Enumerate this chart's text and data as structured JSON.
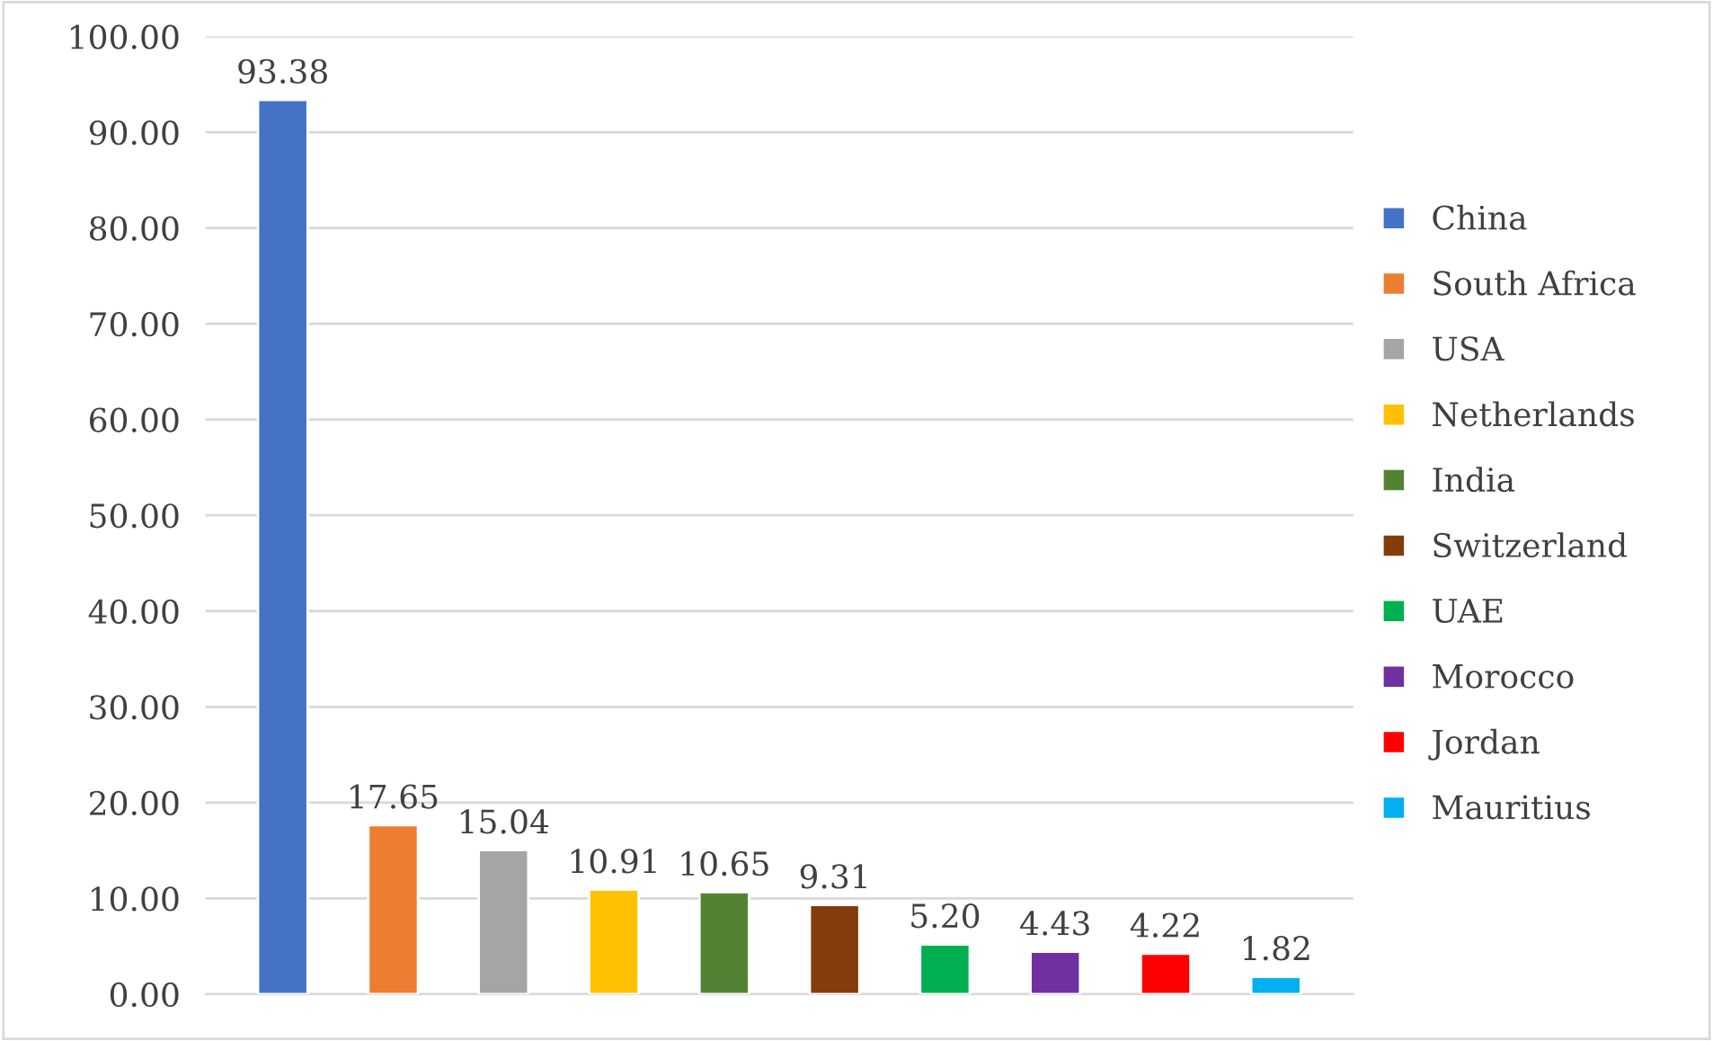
{
  "chart_data": {
    "type": "bar",
    "categories": [
      null,
      null,
      null,
      null,
      null,
      null,
      null,
      null,
      null,
      null
    ],
    "series": [
      {
        "name": "China",
        "color": "#4472c4",
        "values": [
          93.38,
          null,
          null,
          null,
          null,
          null,
          null,
          null,
          null,
          null
        ],
        "value_labels": [
          "93.38",
          null,
          null,
          null,
          null,
          null,
          null,
          null,
          null,
          null
        ]
      },
      {
        "name": "South Africa",
        "color": "#ed7d31",
        "values": [
          null,
          17.65,
          null,
          null,
          null,
          null,
          null,
          null,
          null,
          null
        ],
        "value_labels": [
          null,
          "17.65",
          null,
          null,
          null,
          null,
          null,
          null,
          null,
          null
        ]
      },
      {
        "name": "USA",
        "color": "#a5a5a5",
        "values": [
          null,
          null,
          15.04,
          null,
          null,
          null,
          null,
          null,
          null,
          null
        ],
        "value_labels": [
          null,
          null,
          "15.04",
          null,
          null,
          null,
          null,
          null,
          null,
          null
        ]
      },
      {
        "name": "Netherlands",
        "color": "#ffc000",
        "values": [
          null,
          null,
          null,
          10.91,
          null,
          null,
          null,
          null,
          null,
          null
        ],
        "value_labels": [
          null,
          null,
          null,
          "10.91",
          null,
          null,
          null,
          null,
          null,
          null
        ]
      },
      {
        "name": "India",
        "color": "#548235",
        "values": [
          null,
          null,
          null,
          null,
          10.65,
          null,
          null,
          null,
          null,
          null
        ],
        "value_labels": [
          null,
          null,
          null,
          null,
          "10.65",
          null,
          null,
          null,
          null,
          null
        ]
      },
      {
        "name": "Switzerland",
        "color": "#843c0c",
        "values": [
          null,
          null,
          null,
          null,
          null,
          9.31,
          null,
          null,
          null,
          null
        ],
        "value_labels": [
          null,
          null,
          null,
          null,
          null,
          "9.31",
          null,
          null,
          null,
          null
        ]
      },
      {
        "name": "UAE",
        "color": "#00b050",
        "values": [
          null,
          null,
          null,
          null,
          null,
          null,
          5.2,
          null,
          null,
          null
        ],
        "value_labels": [
          null,
          null,
          null,
          null,
          null,
          null,
          "5.20",
          null,
          null,
          null
        ]
      },
      {
        "name": "Morocco",
        "color": "#7030a0",
        "values": [
          null,
          null,
          null,
          null,
          null,
          null,
          null,
          4.43,
          null,
          null
        ],
        "value_labels": [
          null,
          null,
          null,
          null,
          null,
          null,
          null,
          "4.43",
          null,
          null
        ]
      },
      {
        "name": "Jordan",
        "color": "#ff0000",
        "values": [
          null,
          null,
          null,
          null,
          null,
          null,
          null,
          null,
          4.22,
          null
        ],
        "value_labels": [
          null,
          null,
          null,
          null,
          null,
          null,
          null,
          null,
          "4.22",
          null
        ]
      },
      {
        "name": "Mauritius",
        "color": "#00b0f0",
        "values": [
          null,
          null,
          null,
          null,
          null,
          null,
          null,
          null,
          null,
          1.82
        ],
        "value_labels": [
          null,
          null,
          null,
          null,
          null,
          null,
          null,
          null,
          null,
          "1.82"
        ]
      }
    ],
    "ylim": [
      0,
      100
    ],
    "yticks": [
      {
        "value": 0,
        "label": "0.00"
      },
      {
        "value": 10,
        "label": "10.00"
      },
      {
        "value": 20,
        "label": "20.00"
      },
      {
        "value": 30,
        "label": "30.00"
      },
      {
        "value": 40,
        "label": "40.00"
      },
      {
        "value": 50,
        "label": "50.00"
      },
      {
        "value": 60,
        "label": "60.00"
      },
      {
        "value": 70,
        "label": "70.00"
      },
      {
        "value": 80,
        "label": "80.00"
      },
      {
        "value": 90,
        "label": "90.00"
      },
      {
        "value": 100,
        "label": "100.00"
      }
    ],
    "grid": "y",
    "legend": "right",
    "tick_labels": "y"
  }
}
